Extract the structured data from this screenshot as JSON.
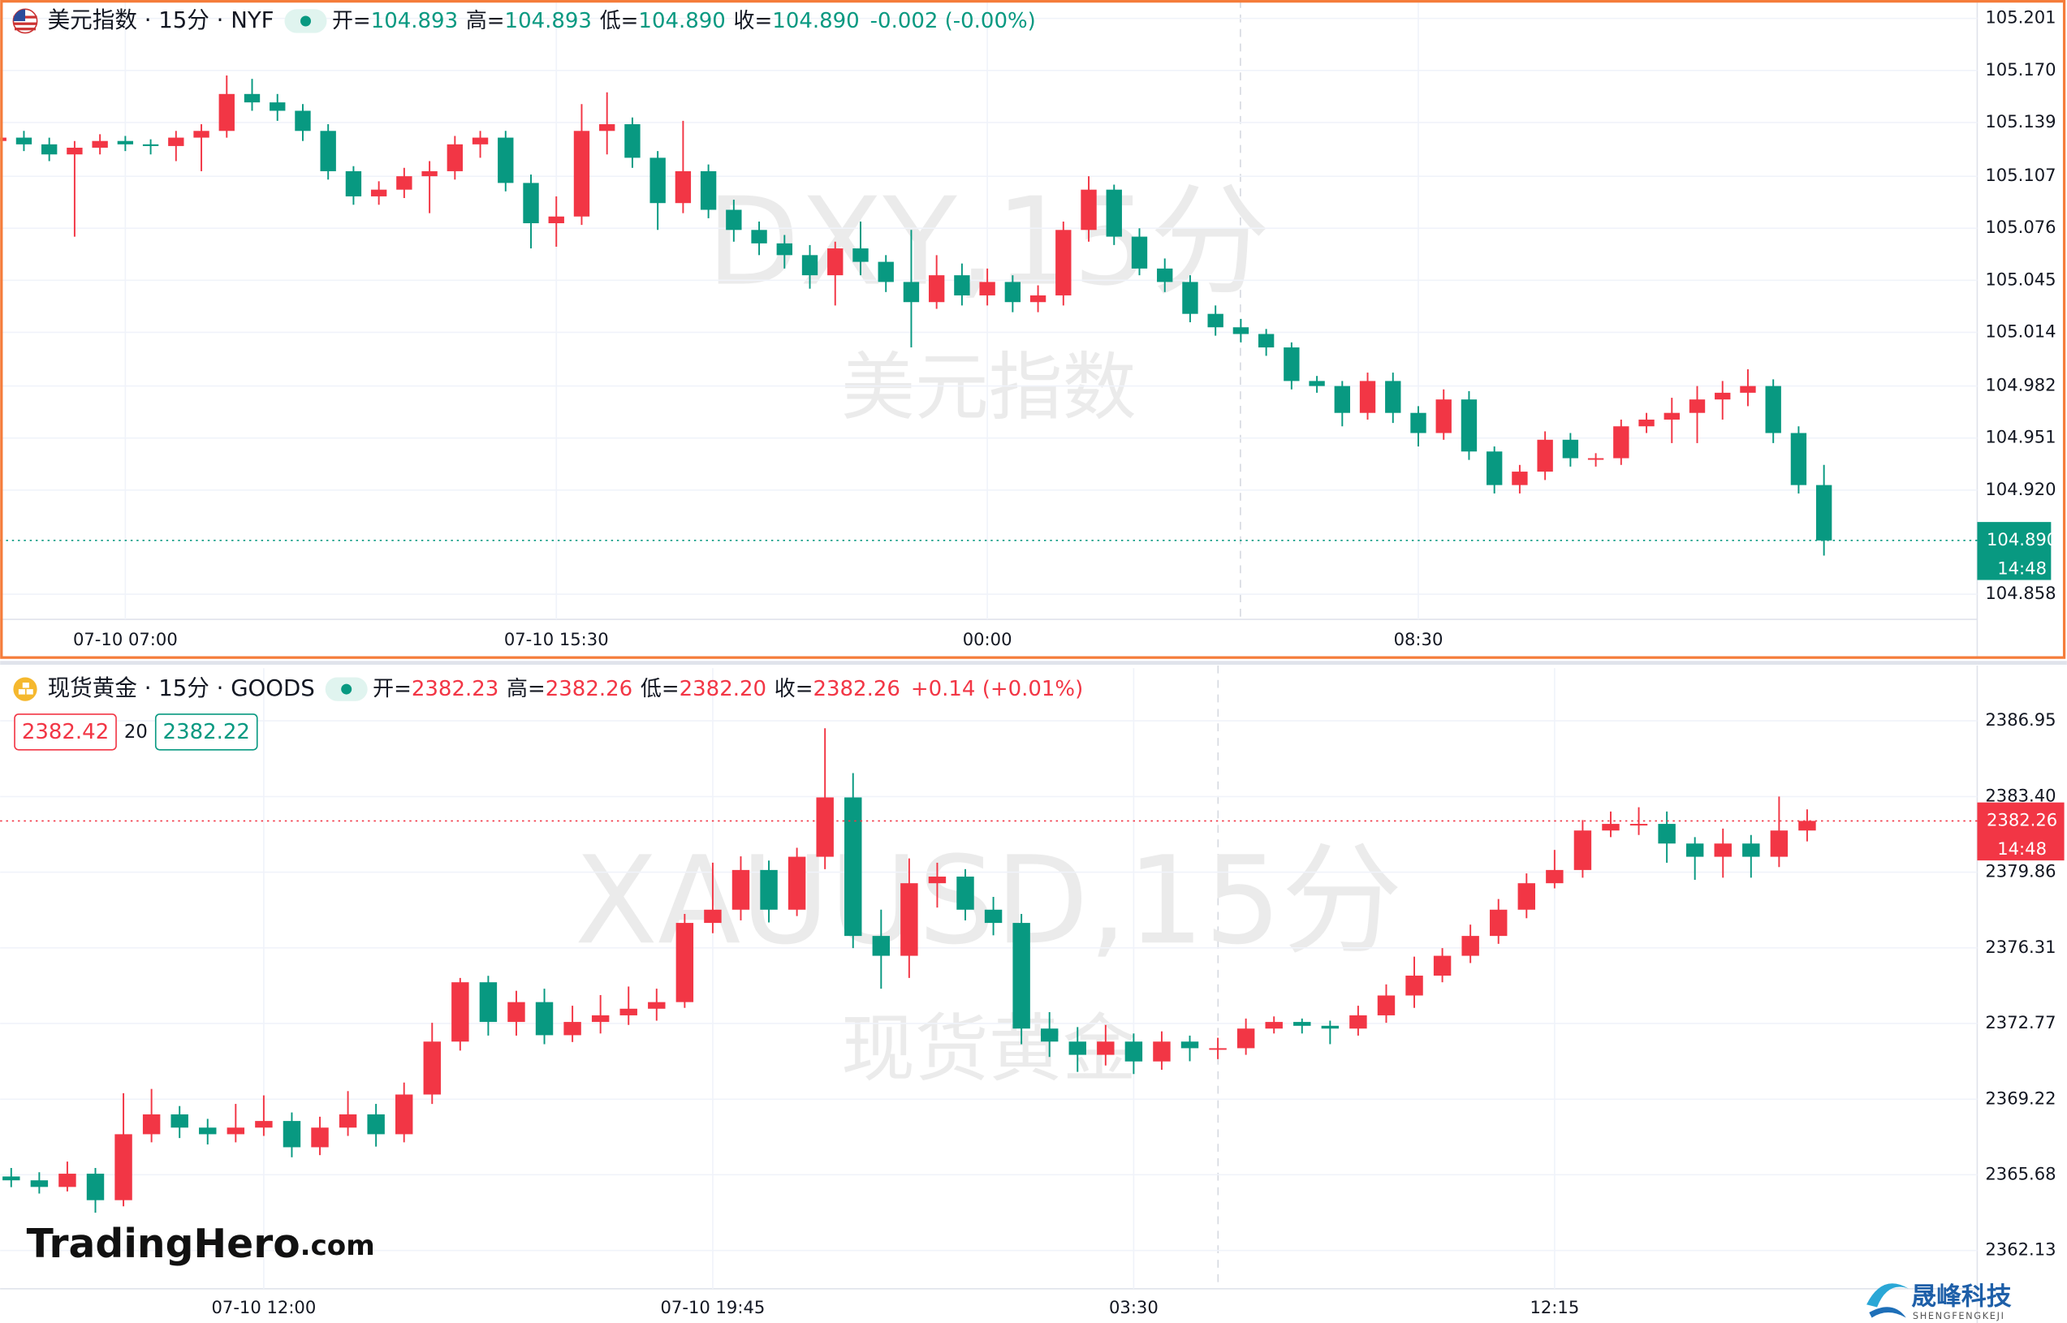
{
  "chart_data": [
    {
      "type": "candlestick",
      "header": {
        "title": "美元指数 · 15分 · NYF",
        "fields": [
          {
            "label": "开=",
            "value": "104.893"
          },
          {
            "label": "高=",
            "value": "104.893"
          },
          {
            "label": "低=",
            "value": "104.890"
          },
          {
            "label": "收=",
            "value": "104.890"
          }
        ],
        "change": "-0.002 (-0.00%)",
        "color": "#089981"
      },
      "watermark": [
        "DXY,15分",
        "美元指数"
      ],
      "categories": [
        null,
        null,
        null,
        null,
        null,
        "07-10 07:00",
        null,
        null,
        null,
        null,
        null,
        null,
        null,
        null,
        null,
        null,
        null,
        null,
        null,
        null,
        null,
        null,
        "07-10 15:30",
        null,
        null,
        null,
        null,
        null,
        null,
        null,
        null,
        null,
        null,
        null,
        null,
        null,
        null,
        null,
        null,
        "00:00",
        null,
        null,
        null,
        null,
        null,
        null,
        null,
        null,
        null,
        null,
        null,
        null,
        null,
        null,
        null,
        null,
        "08:30",
        null,
        null,
        null,
        null,
        null,
        null,
        null,
        null,
        null,
        null,
        null,
        null,
        null,
        null,
        null,
        null
      ],
      "open": [
        105.128,
        105.13,
        105.126,
        105.12,
        105.124,
        105.128,
        105.126,
        105.125,
        105.13,
        105.134,
        105.156,
        105.151,
        105.146,
        105.134,
        105.11,
        105.095,
        105.099,
        105.107,
        105.11,
        105.126,
        105.13,
        105.103,
        105.079,
        105.083,
        105.134,
        105.138,
        105.118,
        105.091,
        105.11,
        105.087,
        105.075,
        105.067,
        105.06,
        105.048,
        105.064,
        105.056,
        105.044,
        105.032,
        105.048,
        105.036,
        105.044,
        105.032,
        105.036,
        105.075,
        105.099,
        105.071,
        105.052,
        105.044,
        105.025,
        105.017,
        105.013,
        105.005,
        104.985,
        104.982,
        104.966,
        104.985,
        104.966,
        104.954,
        104.974,
        104.943,
        104.923,
        104.931,
        104.95,
        104.939,
        104.939,
        104.958,
        104.962,
        104.966,
        104.974,
        104.978,
        104.982,
        104.954,
        104.923
      ],
      "high": [
        105.134,
        105.134,
        105.13,
        105.128,
        105.132,
        105.131,
        105.129,
        105.134,
        105.138,
        105.167,
        105.165,
        105.156,
        105.15,
        105.138,
        105.113,
        105.104,
        105.112,
        105.116,
        105.131,
        105.134,
        105.134,
        105.108,
        105.095,
        105.15,
        105.157,
        105.142,
        105.122,
        105.14,
        105.114,
        105.093,
        105.08,
        105.072,
        105.066,
        105.068,
        105.08,
        105.06,
        105.075,
        105.06,
        105.055,
        105.052,
        105.048,
        105.042,
        105.08,
        105.107,
        105.102,
        105.076,
        105.058,
        105.048,
        105.03,
        105.022,
        105.016,
        105.008,
        104.988,
        104.985,
        104.99,
        104.99,
        104.97,
        104.98,
        104.979,
        104.946,
        104.935,
        104.955,
        104.954,
        104.942,
        104.962,
        104.966,
        104.975,
        104.982,
        104.985,
        104.992,
        104.986,
        104.958,
        104.935
      ],
      "low": [
        105.124,
        105.122,
        105.116,
        105.071,
        105.12,
        105.122,
        105.12,
        105.116,
        105.11,
        105.13,
        105.146,
        105.14,
        105.128,
        105.105,
        105.09,
        105.09,
        105.094,
        105.085,
        105.105,
        105.118,
        105.098,
        105.064,
        105.065,
        105.078,
        105.12,
        105.112,
        105.075,
        105.085,
        105.082,
        105.068,
        105.06,
        105.052,
        105.04,
        105.03,
        105.048,
        105.038,
        105.005,
        105.028,
        105.03,
        105.03,
        105.026,
        105.026,
        105.03,
        105.068,
        105.066,
        105.048,
        105.038,
        105.02,
        105.012,
        105.008,
        105.0,
        104.98,
        104.978,
        104.958,
        104.962,
        104.96,
        104.946,
        104.95,
        104.938,
        104.918,
        104.918,
        104.926,
        104.934,
        104.934,
        104.935,
        104.954,
        104.948,
        104.948,
        104.962,
        104.97,
        104.948,
        104.918,
        104.881
      ],
      "close": [
        105.13,
        105.126,
        105.12,
        105.124,
        105.128,
        105.126,
        105.125,
        105.13,
        105.134,
        105.156,
        105.151,
        105.146,
        105.134,
        105.11,
        105.095,
        105.099,
        105.107,
        105.11,
        105.126,
        105.13,
        105.103,
        105.079,
        105.083,
        105.134,
        105.138,
        105.118,
        105.091,
        105.11,
        105.087,
        105.075,
        105.067,
        105.06,
        105.048,
        105.064,
        105.056,
        105.044,
        105.032,
        105.048,
        105.036,
        105.044,
        105.032,
        105.036,
        105.075,
        105.099,
        105.071,
        105.052,
        105.044,
        105.025,
        105.017,
        105.013,
        105.005,
        104.985,
        104.982,
        104.966,
        104.985,
        104.966,
        104.954,
        104.974,
        104.943,
        104.923,
        104.931,
        104.95,
        104.939,
        104.939,
        104.958,
        104.962,
        104.966,
        104.974,
        104.978,
        104.982,
        104.954,
        104.923,
        104.89
      ],
      "up_color": "#f23645",
      "down_color": "#089981",
      "ylim": [
        104.843,
        105.212
      ],
      "yticks": [
        105.201,
        {
          "value": 105.17,
          "label": "105.170"
        },
        105.139,
        105.107,
        105.076,
        105.045,
        105.014,
        104.982,
        104.951,
        {
          "value": 104.92,
          "label": "104.920"
        },
        104.858
      ],
      "grid": true,
      "last_price": {
        "value": 104.89,
        "label": "104.890"
      },
      "last_time": "14:48",
      "last_color": "#089981"
    },
    {
      "type": "candlestick",
      "header": {
        "title": "现货黄金 · 15分 · GOODS",
        "fields": [
          {
            "label": "开=",
            "value": "2382.23"
          },
          {
            "label": "高=",
            "value": "2382.26"
          },
          {
            "label": "低=",
            "value": "2382.20"
          },
          {
            "label": "收=",
            "value": "2382.26"
          }
        ],
        "change": "+0.14 (+0.01%)",
        "color": "#f23645"
      },
      "quote": {
        "bid": "2382.42",
        "spread": "20",
        "ask": "2382.22"
      },
      "watermark": [
        "XAUUSD,15分",
        "现货黄金"
      ],
      "categories": [
        null,
        null,
        null,
        null,
        null,
        null,
        null,
        null,
        null,
        "07-10 12:00",
        null,
        null,
        null,
        null,
        null,
        null,
        null,
        null,
        null,
        null,
        null,
        null,
        null,
        null,
        null,
        "07-10 19:45",
        null,
        null,
        null,
        null,
        null,
        null,
        null,
        null,
        null,
        null,
        null,
        null,
        null,
        null,
        "03:30",
        null,
        null,
        null,
        null,
        null,
        null,
        null,
        null,
        null,
        null,
        null,
        null,
        null,
        null,
        "12:15",
        null,
        null,
        null,
        null,
        null,
        null,
        null,
        null,
        null
      ],
      "open": [
        2365.6,
        2365.42,
        2365.11,
        2365.73,
        2364.49,
        2367.58,
        2368.51,
        2367.89,
        2367.58,
        2367.89,
        2368.2,
        2366.97,
        2367.89,
        2368.51,
        2367.58,
        2369.44,
        2371.92,
        2374.7,
        2372.84,
        2373.77,
        2372.22,
        2372.84,
        2373.15,
        2373.46,
        2373.77,
        2377.48,
        2378.1,
        2379.96,
        2378.1,
        2380.58,
        2383.36,
        2376.87,
        2375.94,
        2379.34,
        2379.65,
        2378.1,
        2377.48,
        2372.53,
        2371.92,
        2371.3,
        2371.92,
        2370.99,
        2371.92,
        2371.61,
        2371.61,
        2372.53,
        2372.84,
        2372.66,
        2372.53,
        2373.15,
        2374.08,
        2375.01,
        2375.94,
        2376.87,
        2378.1,
        2379.34,
        2379.96,
        2381.81,
        2382.12,
        2382.12,
        2381.2,
        2380.58,
        2381.2,
        2380.58,
        2381.81
      ],
      "high": [
        2366.0,
        2365.8,
        2366.3,
        2366.0,
        2369.5,
        2369.7,
        2368.9,
        2368.3,
        2369.0,
        2369.4,
        2368.6,
        2368.4,
        2369.6,
        2369.0,
        2370.0,
        2372.8,
        2374.9,
        2375.0,
        2374.3,
        2374.4,
        2373.6,
        2374.1,
        2374.5,
        2374.4,
        2377.9,
        2380.3,
        2380.6,
        2380.4,
        2381.0,
        2386.6,
        2384.5,
        2378.1,
        2380.5,
        2380.3,
        2380.0,
        2378.7,
        2377.9,
        2373.3,
        2372.6,
        2372.7,
        2372.3,
        2372.4,
        2372.2,
        2372.1,
        2373.0,
        2373.1,
        2373.0,
        2372.9,
        2373.6,
        2374.6,
        2375.9,
        2376.3,
        2377.4,
        2378.6,
        2379.8,
        2380.9,
        2382.3,
        2382.7,
        2382.9,
        2382.7,
        2381.5,
        2381.9,
        2381.6,
        2383.4,
        2382.8
      ],
      "low": [
        2365.1,
        2364.8,
        2364.9,
        2363.9,
        2364.2,
        2367.2,
        2367.4,
        2367.1,
        2367.2,
        2367.5,
        2366.5,
        2366.6,
        2367.5,
        2367.0,
        2367.2,
        2369.0,
        2371.5,
        2372.2,
        2372.2,
        2371.8,
        2371.9,
        2372.3,
        2372.7,
        2372.9,
        2373.5,
        2377.0,
        2377.6,
        2377.5,
        2377.8,
        2380.0,
        2376.3,
        2374.4,
        2374.9,
        2378.2,
        2377.6,
        2376.9,
        2371.8,
        2371.2,
        2370.5,
        2370.8,
        2370.4,
        2370.6,
        2371.0,
        2371.1,
        2371.3,
        2372.3,
        2372.3,
        2371.8,
        2372.2,
        2372.8,
        2373.5,
        2374.7,
        2375.6,
        2376.5,
        2377.7,
        2379.1,
        2379.6,
        2381.5,
        2381.6,
        2380.3,
        2379.5,
        2379.6,
        2379.6,
        2380.1,
        2381.3
      ],
      "close": [
        2365.42,
        2365.11,
        2365.73,
        2364.49,
        2367.58,
        2368.51,
        2367.89,
        2367.58,
        2367.89,
        2368.2,
        2366.97,
        2367.89,
        2368.51,
        2367.58,
        2369.44,
        2371.92,
        2374.7,
        2372.84,
        2373.77,
        2372.22,
        2372.84,
        2373.15,
        2373.46,
        2373.77,
        2377.48,
        2378.1,
        2379.96,
        2378.1,
        2380.58,
        2383.36,
        2376.87,
        2375.94,
        2379.34,
        2379.65,
        2378.1,
        2377.48,
        2372.53,
        2371.92,
        2371.3,
        2371.92,
        2370.99,
        2371.92,
        2371.61,
        2371.61,
        2372.53,
        2372.84,
        2372.66,
        2372.53,
        2373.15,
        2374.08,
        2375.01,
        2375.94,
        2376.87,
        2378.1,
        2379.34,
        2379.96,
        2381.81,
        2382.12,
        2382.12,
        2381.2,
        2380.58,
        2381.2,
        2380.58,
        2381.81,
        2382.26
      ],
      "up_color": "#f23645",
      "down_color": "#089981",
      "ylim": [
        2360.34,
        2389.42
      ],
      "yticks": [
        2386.95,
        {
          "value": 2383.4,
          "label": "2383.40"
        },
        2379.86,
        2376.31,
        2372.77,
        2369.22,
        2365.68,
        2362.13
      ],
      "grid": true,
      "last_price": {
        "value": 2382.26,
        "label": "2382.26"
      },
      "last_time": "14:48",
      "last_color": "#f23645"
    }
  ],
  "branding": {
    "name": "TradingHero",
    "suffix": ".com"
  },
  "corner_logo": {
    "name": "晟峰科技",
    "pinyin": "SHENGFENGKEJI"
  }
}
